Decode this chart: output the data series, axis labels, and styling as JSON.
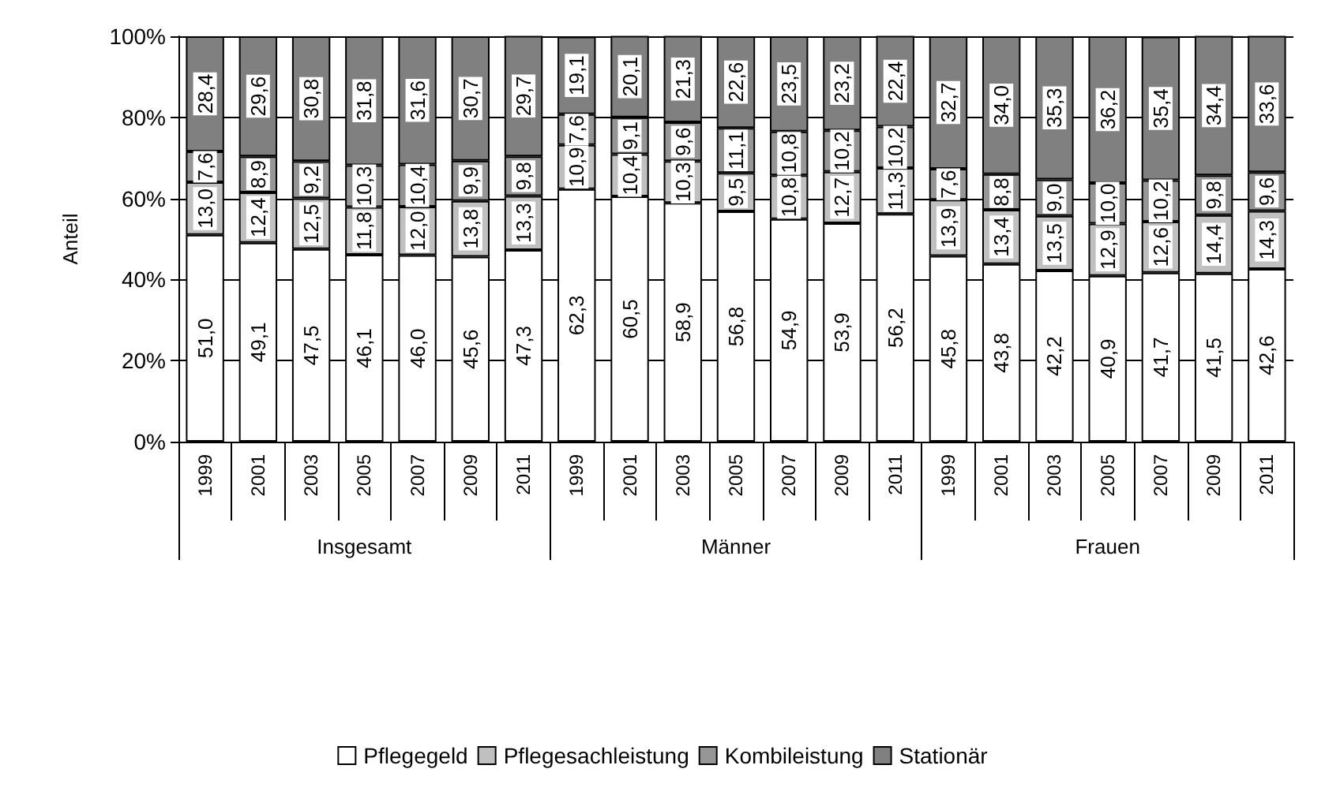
{
  "chart_data": {
    "type": "bar",
    "stacked": true,
    "ylabel": "Anteil",
    "categories": [
      "1999",
      "2001",
      "2003",
      "2005",
      "2007",
      "2009",
      "2011",
      "1999",
      "2001",
      "2003",
      "2005",
      "2007",
      "2009",
      "2011",
      "1999",
      "2001",
      "2003",
      "2005",
      "2007",
      "2009",
      "2011"
    ],
    "annotations": [
      "Insgesamt",
      "Männer",
      "Frauen"
    ],
    "series": [
      {
        "name": "Pflegegeld",
        "color": "#ffffff",
        "values": [
          51.0,
          49.1,
          47.5,
          46.1,
          46.0,
          45.6,
          47.3,
          62.3,
          60.5,
          58.9,
          56.8,
          54.9,
          53.9,
          56.2,
          45.8,
          43.8,
          42.2,
          40.9,
          41.7,
          41.5,
          42.6
        ],
        "value_labels": [
          "51,0",
          "49,1",
          "47,5",
          "46,1",
          "46,0",
          "45,6",
          "47,3",
          "62,3",
          "60,5",
          "58,9",
          "56,8",
          "54,9",
          "53,9",
          "56,2",
          "45,8",
          "43,8",
          "42,2",
          "40,9",
          "41,7",
          "41,5",
          "42,6"
        ]
      },
      {
        "name": "Pflegesachleistung",
        "color": "#c0c0c0",
        "values": [
          13.0,
          12.4,
          12.5,
          11.8,
          12.0,
          13.8,
          13.3,
          10.9,
          10.4,
          10.3,
          9.5,
          10.8,
          12.7,
          11.3,
          13.9,
          13.4,
          13.5,
          12.9,
          12.6,
          14.4,
          14.3
        ],
        "value_labels": [
          "13,0",
          "12,4",
          "12,5",
          "11,8",
          "12,0",
          "13,8",
          "13,3",
          "10,9",
          "10,4",
          "10,3",
          "9,5",
          "10,8",
          "12,7",
          "11,3",
          "13,9",
          "13,4",
          "13,5",
          "12,9",
          "12,6",
          "14,4",
          "14,3"
        ]
      },
      {
        "name": "Kombileistung",
        "color": "#969696",
        "values": [
          7.6,
          8.9,
          9.2,
          10.3,
          10.4,
          9.9,
          9.8,
          7.6,
          9.1,
          9.6,
          11.1,
          10.8,
          10.2,
          10.2,
          7.6,
          8.8,
          9.0,
          10.0,
          10.2,
          9.8,
          9.6
        ],
        "value_labels": [
          "7,6",
          "8,9",
          "9,2",
          "10,3",
          "10,4",
          "9,9",
          "9,8",
          "7,6",
          "9,1",
          "9,6",
          "11,1",
          "10,8",
          "10,2",
          "10,2",
          "7,6",
          "8,8",
          "9,0",
          "10,0",
          "10,2",
          "9,8",
          "9,6"
        ]
      },
      {
        "name": "Stationär",
        "color": "#808080",
        "values": [
          28.4,
          29.6,
          30.8,
          31.8,
          31.6,
          30.7,
          29.7,
          19.1,
          20.1,
          21.3,
          22.6,
          23.5,
          23.2,
          22.4,
          32.7,
          34.0,
          35.3,
          36.2,
          35.4,
          34.4,
          33.6
        ],
        "value_labels": [
          "28,4",
          "29,6",
          "30,8",
          "31,8",
          "31,6",
          "30,7",
          "29,7",
          "19,1",
          "20,1",
          "21,3",
          "22,6",
          "23,5",
          "23,2",
          "22,4",
          "32,7",
          "34,0",
          "35,3",
          "36,2",
          "35,4",
          "34,4",
          "33,6"
        ]
      }
    ],
    "ylim": [
      0,
      100
    ],
    "yticks": [
      {
        "value": 0,
        "label": "0%"
      },
      {
        "value": 20,
        "label": "20%"
      },
      {
        "value": 40,
        "label": "40%"
      },
      {
        "value": 60,
        "label": "60%"
      },
      {
        "value": 80,
        "label": "80%"
      },
      {
        "value": 100,
        "label": "100%"
      }
    ],
    "grid": "y",
    "legend": "bottom"
  }
}
